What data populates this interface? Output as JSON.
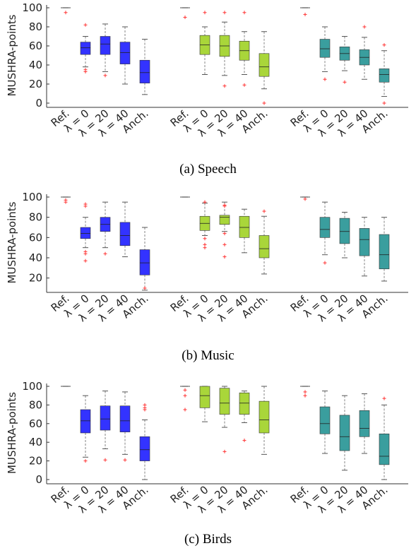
{
  "y_axis_label": "MUSHRA-points",
  "captions": [
    "(a) Speech",
    "(b) Music",
    "(c) Birds"
  ],
  "group_colors": [
    "#3333ff",
    "#a9d63a",
    "#3a9e9e"
  ],
  "outlier_color": "#ff3333",
  "chart_data": [
    {
      "type": "box",
      "title": "(a) Speech",
      "ylabel": "MUSHRA-points",
      "ylim": [
        0,
        100
      ],
      "yticks": [
        0,
        20,
        40,
        60,
        80,
        100
      ],
      "categories": [
        "Ref.",
        "λ = 0",
        "λ = 20",
        "λ = 40",
        "Anch."
      ],
      "series": [
        {
          "boxes": [
            {
              "q1": 100,
              "med": 100,
              "q3": 100,
              "wlo": 100,
              "whi": 100,
              "out": [
                95
              ]
            },
            {
              "q1": 51,
              "med": 58,
              "q3": 64,
              "wlo": 38,
              "whi": 70,
              "out": [
                82,
                35,
                33
              ]
            },
            {
              "q1": 51,
              "med": 62,
              "q3": 70,
              "wlo": 33,
              "whi": 83,
              "out": [
                29
              ]
            },
            {
              "q1": 41,
              "med": 53,
              "q3": 64,
              "wlo": 20,
              "whi": 80,
              "out": []
            },
            {
              "q1": 21,
              "med": 32,
              "q3": 45,
              "wlo": 9,
              "whi": 67,
              "out": []
            }
          ]
        },
        {
          "boxes": [
            {
              "q1": 100,
              "med": 100,
              "q3": 100,
              "wlo": 100,
              "whi": 100,
              "out": [
                90
              ]
            },
            {
              "q1": 51,
              "med": 61,
              "q3": 71,
              "wlo": 30,
              "whi": 80,
              "out": [
                95
              ]
            },
            {
              "q1": 49,
              "med": 60,
              "q3": 71,
              "wlo": 29,
              "whi": 85,
              "out": [
                95,
                18
              ]
            },
            {
              "q1": 45,
              "med": 55,
              "q3": 65,
              "wlo": 30,
              "whi": 75,
              "out": [
                95,
                19
              ]
            },
            {
              "q1": 28,
              "med": 38,
              "q3": 52,
              "wlo": 15,
              "whi": 75,
              "out": [
                0
              ]
            }
          ]
        },
        {
          "boxes": [
            {
              "q1": 100,
              "med": 100,
              "q3": 100,
              "wlo": 100,
              "whi": 100,
              "out": [
                93
              ]
            },
            {
              "q1": 48,
              "med": 57,
              "q3": 67,
              "wlo": 33,
              "whi": 80,
              "out": [
                25
              ]
            },
            {
              "q1": 45,
              "med": 52,
              "q3": 59,
              "wlo": 34,
              "whi": 70,
              "out": [
                22
              ]
            },
            {
              "q1": 40,
              "med": 48,
              "q3": 56,
              "wlo": 25,
              "whi": 69,
              "out": [
                80
              ]
            },
            {
              "q1": 22,
              "med": 30,
              "q3": 36,
              "wlo": 7,
              "whi": 55,
              "out": [
                61,
                0
              ]
            }
          ]
        }
      ]
    },
    {
      "type": "box",
      "title": "(b) Music",
      "ylabel": "MUSHRA-points",
      "ylim": [
        10,
        100
      ],
      "yticks": [
        20,
        40,
        60,
        80,
        100
      ],
      "categories": [
        "Ref.",
        "λ = 0",
        "λ = 20",
        "λ = 40",
        "Anch."
      ],
      "series": [
        {
          "boxes": [
            {
              "q1": 100,
              "med": 100,
              "q3": 100,
              "wlo": 100,
              "whi": 100,
              "out": [
                97,
                95
              ]
            },
            {
              "q1": 59,
              "med": 64,
              "q3": 70,
              "wlo": 50,
              "whi": 80,
              "out": [
                93,
                91,
                46,
                44,
                37
              ]
            },
            {
              "q1": 66,
              "med": 73,
              "q3": 80,
              "wlo": 50,
              "whi": 95,
              "out": [
                44
              ]
            },
            {
              "q1": 52,
              "med": 62,
              "q3": 75,
              "wlo": 41,
              "whi": 95,
              "out": []
            },
            {
              "q1": 23,
              "med": 35,
              "q3": 48,
              "wlo": 8,
              "whi": 70,
              "out": [
                10
              ]
            }
          ]
        },
        {
          "boxes": [
            {
              "q1": 100,
              "med": 100,
              "q3": 100,
              "wlo": 100,
              "whi": 100,
              "out": []
            },
            {
              "q1": 67,
              "med": 74,
              "q3": 81,
              "wlo": 62,
              "whi": 94,
              "out": [
                95,
                59,
                53,
                50
              ]
            },
            {
              "q1": 73,
              "med": 80,
              "q3": 82,
              "wlo": 66,
              "whi": 95,
              "out": [
                92,
                91,
                64,
                53,
                41
              ]
            },
            {
              "q1": 60,
              "med": 70,
              "q3": 81,
              "wlo": 45,
              "whi": 88,
              "out": []
            },
            {
              "q1": 40,
              "med": 49,
              "q3": 62,
              "wlo": 24,
              "whi": 81,
              "out": [
                86
              ]
            }
          ]
        },
        {
          "boxes": [
            {
              "q1": 100,
              "med": 100,
              "q3": 100,
              "wlo": 100,
              "whi": 100,
              "out": [
                98
              ]
            },
            {
              "q1": 60,
              "med": 68,
              "q3": 80,
              "wlo": 43,
              "whi": 95,
              "out": [
                35
              ]
            },
            {
              "q1": 54,
              "med": 66,
              "q3": 79,
              "wlo": 40,
              "whi": 85,
              "out": []
            },
            {
              "q1": 42,
              "med": 58,
              "q3": 69,
              "wlo": 22,
              "whi": 80,
              "out": []
            },
            {
              "q1": 29,
              "med": 43,
              "q3": 63,
              "wlo": 17,
              "whi": 80,
              "out": []
            }
          ]
        }
      ]
    },
    {
      "type": "box",
      "title": "(c) Birds",
      "ylabel": "MUSHRA-points",
      "ylim": [
        0,
        100
      ],
      "yticks": [
        0,
        20,
        40,
        60,
        80,
        100
      ],
      "categories": [
        "Ref.",
        "λ = 0",
        "λ = 20",
        "λ = 40",
        "Anch."
      ],
      "series": [
        {
          "boxes": [
            {
              "q1": 100,
              "med": 100,
              "q3": 100,
              "wlo": 100,
              "whi": 100,
              "out": []
            },
            {
              "q1": 50,
              "med": 63,
              "q3": 75,
              "wlo": 24,
              "whi": 90,
              "out": [
                20
              ]
            },
            {
              "q1": 53,
              "med": 65,
              "q3": 79,
              "wlo": 33,
              "whi": 95,
              "out": [
                21
              ]
            },
            {
              "q1": 51,
              "med": 63,
              "q3": 79,
              "wlo": 27,
              "whi": 94,
              "out": [
                21
              ]
            },
            {
              "q1": 20,
              "med": 32,
              "q3": 46,
              "wlo": 0,
              "whi": 64,
              "out": [
                80,
                77,
                75
              ]
            }
          ]
        },
        {
          "boxes": [
            {
              "q1": 100,
              "med": 100,
              "q3": 100,
              "wlo": 100,
              "whi": 100,
              "out": [
                96,
                90,
                75
              ]
            },
            {
              "q1": 77,
              "med": 90,
              "q3": 100,
              "wlo": 62,
              "whi": 100,
              "out": []
            },
            {
              "q1": 70,
              "med": 82,
              "q3": 98,
              "wlo": 56,
              "whi": 100,
              "out": [
                30
              ]
            },
            {
              "q1": 70,
              "med": 82,
              "q3": 93,
              "wlo": 61,
              "whi": 95,
              "out": [
                42
              ]
            },
            {
              "q1": 50,
              "med": 64,
              "q3": 84,
              "wlo": 27,
              "whi": 100,
              "out": []
            }
          ]
        },
        {
          "boxes": [
            {
              "q1": 100,
              "med": 100,
              "q3": 100,
              "wlo": 100,
              "whi": 100,
              "out": [
                94,
                90
              ]
            },
            {
              "q1": 49,
              "med": 60,
              "q3": 78,
              "wlo": 28,
              "whi": 95,
              "out": []
            },
            {
              "q1": 31,
              "med": 46,
              "q3": 69,
              "wlo": 10,
              "whi": 90,
              "out": []
            },
            {
              "q1": 46,
              "med": 55,
              "q3": 74,
              "wlo": 28,
              "whi": 92,
              "out": []
            },
            {
              "q1": 16,
              "med": 25,
              "q3": 49,
              "wlo": 0,
              "whi": 80,
              "out": [
                87
              ]
            }
          ]
        }
      ]
    }
  ]
}
